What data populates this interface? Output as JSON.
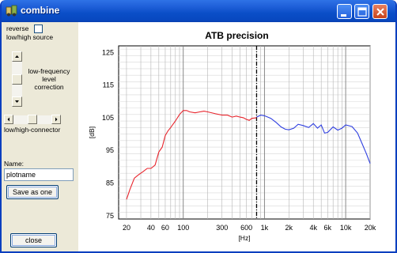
{
  "window": {
    "title": "combine"
  },
  "left_panel": {
    "reverse_label": "reverse",
    "reverse_checked": false,
    "low_high_source_label": "low/high source",
    "level_correction_lines": [
      "low-frequency",
      "level",
      "correction"
    ],
    "low_high_connector_label": "low/high-connector",
    "name_label": "Name:",
    "name_value": "plotname",
    "save_button": "Save as one",
    "close_button": "close"
  },
  "chart_data": {
    "type": "line",
    "title": "ATB precision",
    "xlabel": "[Hz]",
    "ylabel": "[dB]",
    "xscale": "log",
    "xlim": [
      16,
      20000
    ],
    "ylim": [
      74,
      127
    ],
    "yticks": [
      75,
      85,
      95,
      105,
      115,
      125
    ],
    "xtick_labels": [
      {
        "value": 20,
        "label": "20"
      },
      {
        "value": 40,
        "label": "40"
      },
      {
        "value": 60,
        "label": "60"
      },
      {
        "value": 100,
        "label": "100"
      },
      {
        "value": 300,
        "label": "300"
      },
      {
        "value": 600,
        "label": "600"
      },
      {
        "value": 1000,
        "label": "1k"
      },
      {
        "value": 2000,
        "label": "2k"
      },
      {
        "value": 4000,
        "label": "4k"
      },
      {
        "value": 6000,
        "label": "6k"
      },
      {
        "value": 10000,
        "label": "10k"
      },
      {
        "value": 20000,
        "label": "20k"
      }
    ],
    "grid": true,
    "crossover_hz": 800,
    "series": [
      {
        "color": "#e8242c",
        "x": [
          20,
          22,
          25,
          28,
          32,
          36,
          40,
          45,
          50,
          55,
          60,
          65,
          70,
          80,
          90,
          100,
          110,
          120,
          140,
          160,
          180,
          200,
          250,
          300,
          350,
          400,
          450,
          500,
          550,
          600,
          650,
          700,
          800
        ],
        "y": [
          80,
          83,
          86.5,
          87.5,
          88.5,
          89.5,
          89.5,
          90.5,
          94.5,
          96,
          99.5,
          101,
          102,
          104,
          106,
          107.2,
          107.2,
          106.8,
          106.5,
          106.8,
          107,
          106.8,
          106.2,
          105.8,
          105.8,
          105.2,
          105.5,
          105.2,
          105,
          104.5,
          104.2,
          104.8,
          105
        ]
      },
      {
        "color": "#2f3fe0",
        "x": [
          800,
          900,
          1000,
          1100,
          1200,
          1400,
          1600,
          1800,
          2000,
          2300,
          2600,
          3000,
          3500,
          4000,
          4500,
          5000,
          5500,
          6000,
          7000,
          8000,
          9000,
          10000,
          12000,
          14000,
          16000,
          18000,
          20000
        ],
        "y": [
          105.2,
          105.8,
          105.6,
          105.2,
          104.8,
          103.5,
          102.2,
          101.5,
          101.3,
          101.8,
          103,
          102.6,
          102,
          103.2,
          101.8,
          102.8,
          100.3,
          100.5,
          102.2,
          101.2,
          101.8,
          102.8,
          102.3,
          100.3,
          97,
          94,
          91
        ]
      }
    ]
  }
}
